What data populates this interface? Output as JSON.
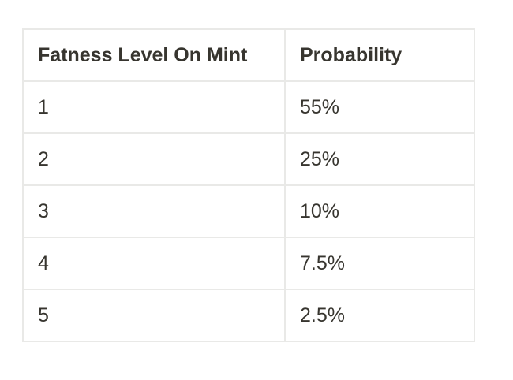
{
  "table": {
    "headers": [
      "Fatness Level On Mint",
      "Probability"
    ],
    "rows": [
      [
        "1",
        "55%"
      ],
      [
        "2",
        "25%"
      ],
      [
        "3",
        "10%"
      ],
      [
        "4",
        "7.5%"
      ],
      [
        "5",
        "2.5%"
      ]
    ]
  },
  "colors": {
    "text": "#37352f",
    "border": "#e9e9e7",
    "background": "#ffffff"
  }
}
